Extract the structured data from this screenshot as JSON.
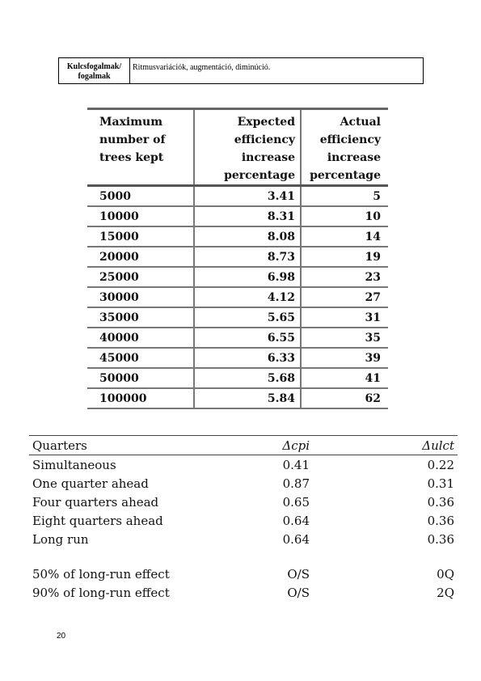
{
  "key_concepts": {
    "label": "Kulcsfogalmak/ fogalmak",
    "value": "Ritmusvariációk, augmentáció, diminúció."
  },
  "efficiency_table": {
    "headers": [
      [
        "Maximum",
        "number of",
        "trees kept"
      ],
      [
        "Expected",
        "efficiency",
        "increase",
        "percentage"
      ],
      [
        "Actual",
        "efficiency",
        "increase",
        "percentage"
      ]
    ],
    "rows": [
      [
        "5000",
        "3.41",
        "5"
      ],
      [
        "10000",
        "8.31",
        "10"
      ],
      [
        "15000",
        "8.08",
        "14"
      ],
      [
        "20000",
        "8.73",
        "19"
      ],
      [
        "25000",
        "6.98",
        "23"
      ],
      [
        "30000",
        "4.12",
        "27"
      ],
      [
        "35000",
        "5.65",
        "31"
      ],
      [
        "40000",
        "6.55",
        "35"
      ],
      [
        "45000",
        "6.33",
        "39"
      ],
      [
        "50000",
        "5.68",
        "41"
      ],
      [
        "100000",
        "5.84",
        "62"
      ]
    ]
  },
  "quarters_table": {
    "headers": [
      "Quarters",
      "Δcpi",
      "Δulct"
    ],
    "rows": [
      [
        "Simultaneous",
        "0.41",
        "0.22"
      ],
      [
        "One quarter ahead",
        "0.87",
        "0.31"
      ],
      [
        "Four quarters ahead",
        "0.65",
        "0.36"
      ],
      [
        "Eight quarters ahead",
        "0.64",
        "0.36"
      ],
      [
        "Long run",
        "0.64",
        "0.36"
      ]
    ],
    "effect_rows": [
      [
        "50% of long-run effect",
        "O/S",
        "0Q"
      ],
      [
        "90% of long-run effect",
        "O/S",
        "2Q"
      ]
    ]
  },
  "page_number": "20"
}
